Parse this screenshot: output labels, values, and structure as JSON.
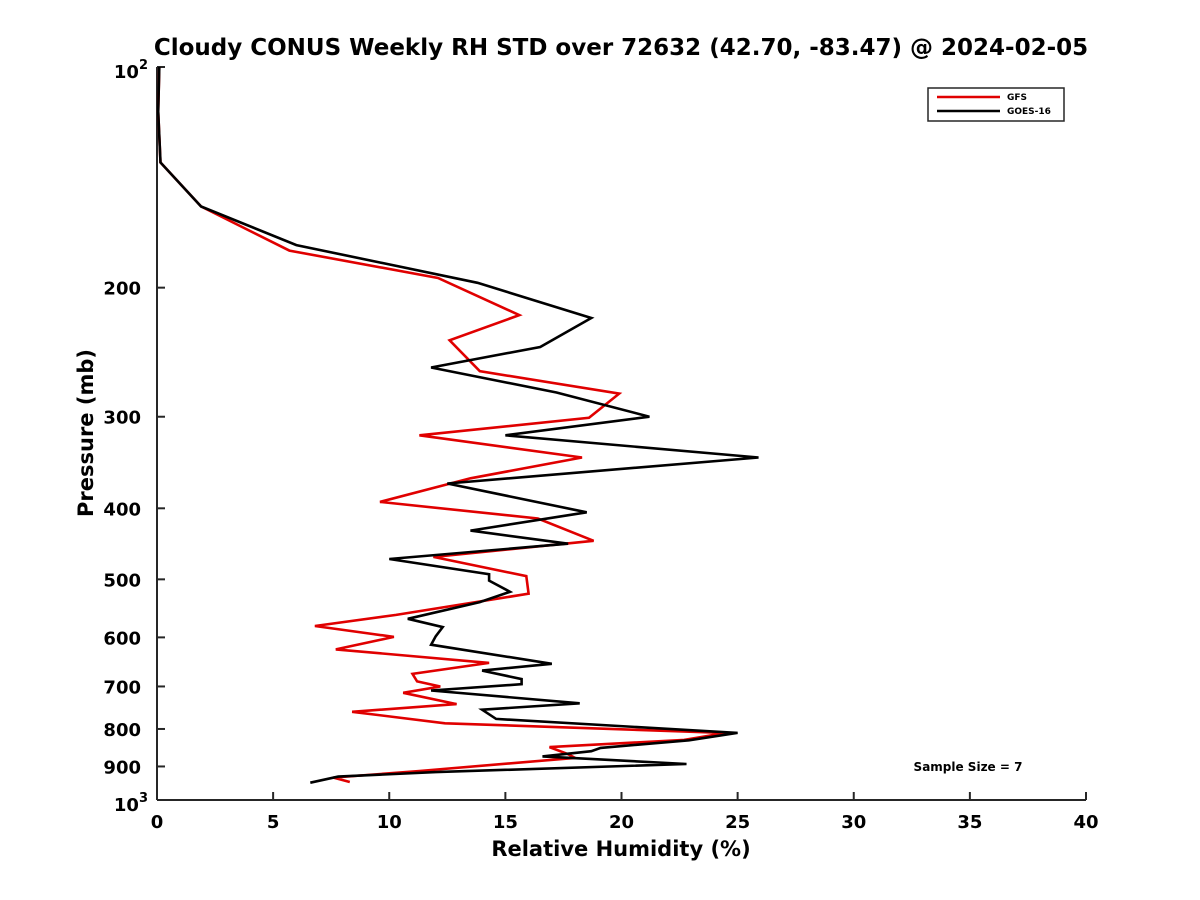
{
  "chart_data": {
    "type": "line",
    "title": "Cloudy CONUS Weekly RH STD over 72632 (42.70, -83.47) @ 2024-02-05",
    "xlabel": "Relative Humidity (%)",
    "ylabel": "Pressure (mb)",
    "xlim": [
      0,
      40
    ],
    "ylim": [
      100,
      1000
    ],
    "y_scale": "log",
    "y_reversed": true,
    "x_ticks": [
      "0",
      "5",
      "10",
      "15",
      "20",
      "25",
      "30",
      "35",
      "40"
    ],
    "y_ticks": [
      {
        "value": 100,
        "base": "10",
        "exp": "2"
      },
      {
        "value": 200,
        "label": "200"
      },
      {
        "value": 300,
        "label": "300"
      },
      {
        "value": 400,
        "label": "400"
      },
      {
        "value": 500,
        "label": "500"
      },
      {
        "value": 600,
        "label": "600"
      },
      {
        "value": 700,
        "label": "700"
      },
      {
        "value": 800,
        "label": "800"
      },
      {
        "value": 900,
        "label": "900"
      },
      {
        "value": 1000,
        "base": "10",
        "exp": "3"
      }
    ],
    "legend_position": "top-right",
    "annotation": "Sample Size = 7",
    "series": [
      {
        "name": "GFS",
        "color": "#e00000",
        "points": [
          [
            0.1,
            100
          ],
          [
            0.05,
            115
          ],
          [
            0.15,
            135
          ],
          [
            1.9,
            155
          ],
          [
            5.7,
            178
          ],
          [
            12.1,
            194
          ],
          [
            15.6,
            218
          ],
          [
            12.6,
            236
          ],
          [
            13.9,
            260
          ],
          [
            19.9,
            279
          ],
          [
            18.6,
            301
          ],
          [
            11.3,
            318
          ],
          [
            18.3,
            341
          ],
          [
            13.5,
            364
          ],
          [
            9.6,
            392
          ],
          [
            16.4,
            413
          ],
          [
            18.8,
            443
          ],
          [
            11.9,
            466
          ],
          [
            15.9,
            495
          ],
          [
            16.0,
            523
          ],
          [
            10.3,
            559
          ],
          [
            6.8,
            579
          ],
          [
            10.2,
            599
          ],
          [
            7.7,
            623
          ],
          [
            14.3,
            650
          ],
          [
            11.0,
            673
          ],
          [
            11.2,
            689
          ],
          [
            12.2,
            700
          ],
          [
            10.6,
            714
          ],
          [
            12.9,
            740
          ],
          [
            8.4,
            758
          ],
          [
            12.4,
            786
          ],
          [
            24.5,
            810
          ],
          [
            22.7,
            828
          ],
          [
            16.9,
            847
          ],
          [
            17.7,
            866
          ],
          [
            18.0,
            876
          ],
          [
            11.3,
            913
          ],
          [
            7.6,
            932
          ],
          [
            8.3,
            945
          ]
        ]
      },
      {
        "name": "GOES-16",
        "color": "#000000",
        "points": [
          [
            0.1,
            100
          ],
          [
            0.05,
            115
          ],
          [
            0.15,
            135
          ],
          [
            1.9,
            155
          ],
          [
            6.0,
            175
          ],
          [
            13.8,
            197
          ],
          [
            18.7,
            220
          ],
          [
            16.5,
            241
          ],
          [
            11.8,
            257
          ],
          [
            17.2,
            278
          ],
          [
            21.2,
            300
          ],
          [
            15.0,
            318
          ],
          [
            25.9,
            341
          ],
          [
            12.5,
            370
          ],
          [
            18.5,
            405
          ],
          [
            13.5,
            429
          ],
          [
            17.7,
            447
          ],
          [
            10.0,
            469
          ],
          [
            14.3,
            492
          ],
          [
            14.3,
            502
          ],
          [
            15.2,
            520
          ],
          [
            13.9,
            537
          ],
          [
            10.8,
            566
          ],
          [
            12.3,
            581
          ],
          [
            12.0,
            598
          ],
          [
            11.8,
            614
          ],
          [
            17.0,
            652
          ],
          [
            14.0,
            666
          ],
          [
            15.7,
            684
          ],
          [
            15.7,
            695
          ],
          [
            11.8,
            709
          ],
          [
            18.2,
            738
          ],
          [
            14.0,
            753
          ],
          [
            14.6,
            775
          ],
          [
            25.0,
            810
          ],
          [
            22.9,
            829
          ],
          [
            19.1,
            849
          ],
          [
            18.7,
            858
          ],
          [
            16.6,
            872
          ],
          [
            22.8,
            893
          ],
          [
            12.0,
            916
          ],
          [
            7.8,
            929
          ],
          [
            6.6,
            947
          ]
        ]
      }
    ]
  }
}
